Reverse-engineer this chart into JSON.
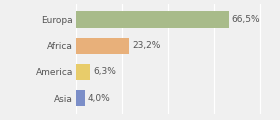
{
  "categories": [
    "Europa",
    "Africa",
    "America",
    "Asia"
  ],
  "values": [
    66.5,
    23.2,
    6.3,
    4.0
  ],
  "labels": [
    "66,5%",
    "23,2%",
    "6,3%",
    "4,0%"
  ],
  "bar_colors": [
    "#a8bb8a",
    "#e8b07a",
    "#e8cc6a",
    "#7b8ec8"
  ],
  "background_color": "#f0f0f0",
  "xlim": [
    0,
    85
  ],
  "bar_height": 0.62,
  "label_fontsize": 6.5,
  "tick_fontsize": 6.5,
  "figsize": [
    2.8,
    1.2
  ],
  "dpi": 100
}
